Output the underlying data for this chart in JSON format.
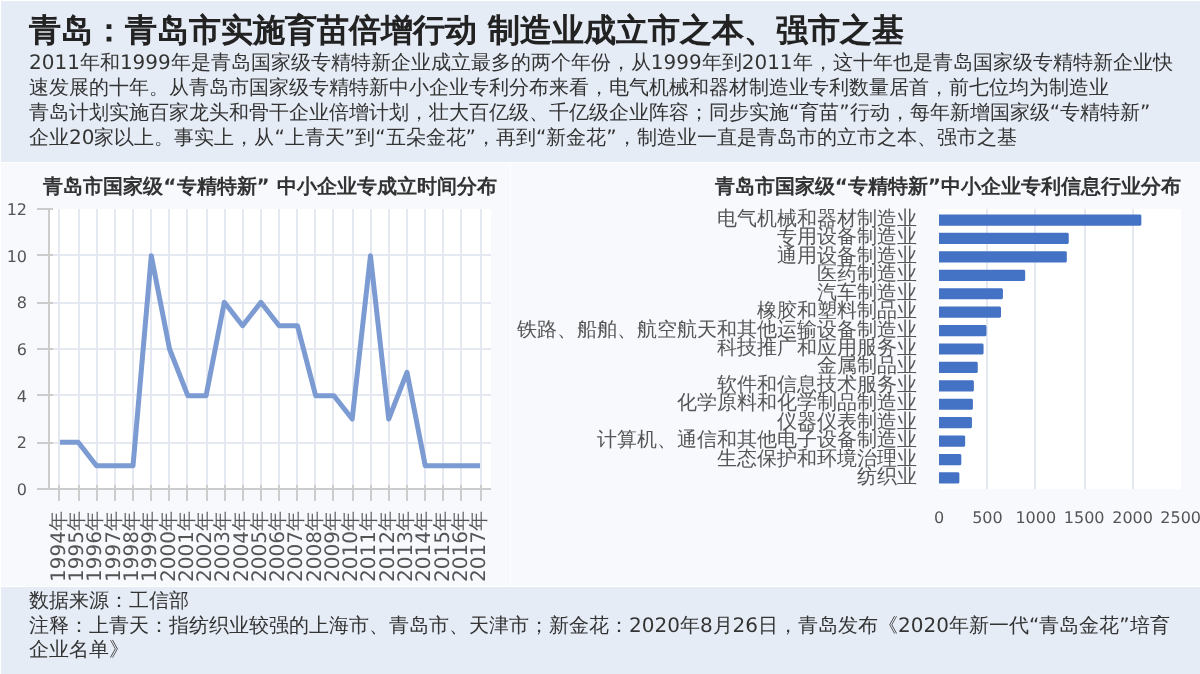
{
  "chart_data": [
    {
      "type": "other",
      "title": "青岛：青岛市实施育苗倍增行动 制造业成立市之本、强市之基",
      "annotations": [
        "2011年和1999年是青岛国家级专精特新企业成立最多的两个年份，从1999年到2011年，这十年也是青岛国家级专精特新企业快速发展的十年。从青岛市国家级专精特新中小企业专利分布来看，电气机械和器材制造业专利数量居首，前七位均为制造业",
        "青岛计划实施百家龙头和骨干企业倍增计划，壮大百亿级、千亿级企业阵容；同步实施“育苗”行动，每年新增国家级“专精特新”企业20家以上。事实上，从“上青天”到“五朵金花”，再到“新金花”，制造业一直是青岛市的立市之本、强市之基"
      ]
    },
    {
      "type": "line",
      "title": "青岛市国家级“专精特新” 中小企业专成立时间分布",
      "categories": [
        "1994年",
        "1995年",
        "1996年",
        "1997年",
        "1998年",
        "1999年",
        "2000年",
        "2001年",
        "2002年",
        "2003年",
        "2004年",
        "2005年",
        "2006年",
        "2007年",
        "2008年",
        "2009年",
        "2010年",
        "2011年",
        "2012年",
        "2013年",
        "2014年",
        "2015年",
        "2016年",
        "2017年"
      ],
      "series": [
        {
          "color": "#7b9bd2",
          "values": [
            2,
            2,
            1,
            1,
            1,
            10,
            6,
            4,
            4,
            8,
            7,
            8,
            7,
            7,
            4,
            4,
            3,
            10,
            3,
            5,
            1,
            1,
            1,
            1
          ]
        }
      ],
      "ylim": [
        0,
        12
      ],
      "yticks": [
        0,
        2,
        4,
        6,
        8,
        10,
        12
      ],
      "grid": true
    },
    {
      "type": "bar",
      "orientation": "horizontal",
      "title": "青岛市国家级“专精特新”中小企业专利信息行业分布",
      "categories": [
        "电气机械和器材制造业",
        "专用设备制造业",
        "通用设备制造业",
        "医药制造业",
        "汽车制造业",
        "橡胶和塑料制品业",
        "铁路、船舶、航空航天和其他运输设备制造业",
        "科技推广和应用服务业",
        "金属制品业",
        "软件和信息技术服务业",
        "化学原料和化学制品制造业",
        "仪器仪表制造业",
        "计算机、通信和其他电子设备制造业",
        "生态保护和环境治理业",
        "纺织业"
      ],
      "series": [
        {
          "color": "#4472c4",
          "values": [
            2080,
            1330,
            1310,
            880,
            650,
            630,
            480,
            450,
            390,
            350,
            340,
            330,
            260,
            220,
            200
          ]
        }
      ],
      "xlim": [
        0,
        2500
      ],
      "xticks": [
        0,
        500,
        1000,
        1500,
        2000,
        2500
      ],
      "grid": "x"
    },
    {
      "type": "other",
      "annotations": [
        "数据来源：工信部",
        "注释：上青天：指纺织业较强的上海市、青岛市、天津市；新金花：2020年8月26日，青岛发布《2020年新一代“青岛金花”培育企业名单》"
      ]
    }
  ]
}
